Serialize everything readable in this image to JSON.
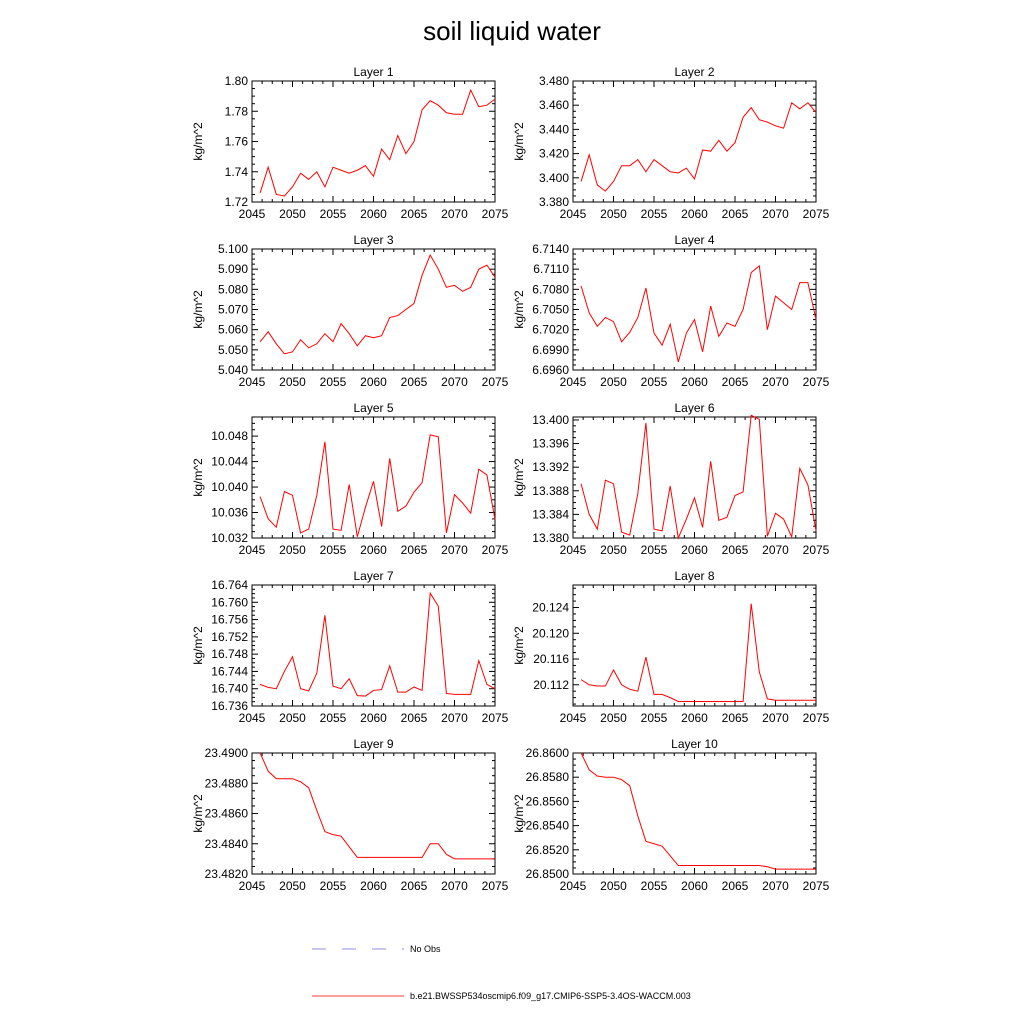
{
  "title": "soil liquid water",
  "colors": {
    "model": "#ff0000",
    "obs": "#6a6ad8",
    "axis": "#000000"
  },
  "legend": [
    {
      "label": "No Obs",
      "style": "dashed",
      "color": "#6a6ad8"
    },
    {
      "label": "b.e21.BWSSP534oscmip6.f09_g17.CMIP6-SSP5-3.4OS-WACCM.003",
      "style": "solid",
      "color": "#ff0000"
    }
  ],
  "chart_data": [
    {
      "type": "line",
      "title": "Layer 1",
      "ylabel": "kg/m^2",
      "xlim": [
        2045,
        2075
      ],
      "ylim": [
        1.72,
        1.8
      ],
      "xticks": [
        2045,
        2050,
        2055,
        2060,
        2065,
        2070,
        2075
      ],
      "xtick_labels": [
        "2045",
        "2050",
        "2055",
        "2060",
        "2065",
        "2070",
        "2075"
      ],
      "yticks": [
        1.72,
        1.74,
        1.76,
        1.78,
        1.8
      ],
      "ytick_labels": [
        "1.72",
        "1.74",
        "1.76",
        "1.78",
        "1.80"
      ],
      "x": [
        2046,
        2047,
        2048,
        2049,
        2050,
        2051,
        2052,
        2053,
        2054,
        2055,
        2056,
        2057,
        2058,
        2059,
        2060,
        2061,
        2062,
        2063,
        2064,
        2065,
        2066,
        2067,
        2068,
        2069,
        2070,
        2071,
        2072,
        2073,
        2074,
        2075
      ],
      "series": [
        {
          "values": [
            1.726,
            1.743,
            1.725,
            1.724,
            1.73,
            1.739,
            1.735,
            1.74,
            1.73,
            1.743,
            1.741,
            1.739,
            1.741,
            1.744,
            1.737,
            1.755,
            1.748,
            1.764,
            1.752,
            1.76,
            1.781,
            1.787,
            1.784,
            1.779,
            1.778,
            1.778,
            1.794,
            1.783,
            1.784,
            1.788
          ]
        }
      ]
    },
    {
      "type": "line",
      "title": "Layer 2",
      "ylabel": "kg/m^2",
      "xlim": [
        2045,
        2075
      ],
      "ylim": [
        3.38,
        3.48
      ],
      "xticks": [
        2045,
        2050,
        2055,
        2060,
        2065,
        2070,
        2075
      ],
      "xtick_labels": [
        "2045",
        "2050",
        "2055",
        "2060",
        "2065",
        "2070",
        "2075"
      ],
      "yticks": [
        3.38,
        3.4,
        3.42,
        3.44,
        3.46,
        3.48
      ],
      "ytick_labels": [
        "3.380",
        "3.400",
        "3.420",
        "3.440",
        "3.460",
        "3.480"
      ],
      "x": [
        2046,
        2047,
        2048,
        2049,
        2050,
        2051,
        2052,
        2053,
        2054,
        2055,
        2056,
        2057,
        2058,
        2059,
        2060,
        2061,
        2062,
        2063,
        2064,
        2065,
        2066,
        2067,
        2068,
        2069,
        2070,
        2071,
        2072,
        2073,
        2074,
        2075
      ],
      "series": [
        {
          "values": [
            3.397,
            3.419,
            3.394,
            3.389,
            3.397,
            3.41,
            3.41,
            3.415,
            3.405,
            3.415,
            3.41,
            3.405,
            3.404,
            3.408,
            3.399,
            3.423,
            3.422,
            3.431,
            3.422,
            3.429,
            3.45,
            3.458,
            3.448,
            3.446,
            3.443,
            3.441,
            3.462,
            3.457,
            3.462,
            3.454
          ]
        }
      ]
    },
    {
      "type": "line",
      "title": "Layer 3",
      "ylabel": "kg/m^2",
      "xlim": [
        2045,
        2075
      ],
      "ylim": [
        5.04,
        5.1
      ],
      "xticks": [
        2045,
        2050,
        2055,
        2060,
        2065,
        2070,
        2075
      ],
      "xtick_labels": [
        "2045",
        "2050",
        "2055",
        "2060",
        "2065",
        "2070",
        "2075"
      ],
      "yticks": [
        5.04,
        5.05,
        5.06,
        5.07,
        5.08,
        5.09,
        5.1
      ],
      "ytick_labels": [
        "5.040",
        "5.050",
        "5.060",
        "5.070",
        "5.080",
        "5.090",
        "5.100"
      ],
      "x": [
        2046,
        2047,
        2048,
        2049,
        2050,
        2051,
        2052,
        2053,
        2054,
        2055,
        2056,
        2057,
        2058,
        2059,
        2060,
        2061,
        2062,
        2063,
        2064,
        2065,
        2066,
        2067,
        2068,
        2069,
        2070,
        2071,
        2072,
        2073,
        2074,
        2075
      ],
      "series": [
        {
          "values": [
            5.054,
            5.059,
            5.053,
            5.048,
            5.049,
            5.055,
            5.051,
            5.053,
            5.058,
            5.054,
            5.063,
            5.058,
            5.052,
            5.057,
            5.056,
            5.057,
            5.066,
            5.067,
            5.07,
            5.073,
            5.087,
            5.097,
            5.09,
            5.081,
            5.082,
            5.079,
            5.081,
            5.09,
            5.092,
            5.086
          ]
        }
      ]
    },
    {
      "type": "line",
      "title": "Layer 4",
      "ylabel": "kg/m^2",
      "xlim": [
        2045,
        2075
      ],
      "ylim": [
        6.696,
        6.714
      ],
      "xticks": [
        2045,
        2050,
        2055,
        2060,
        2065,
        2070,
        2075
      ],
      "xtick_labels": [
        "2045",
        "2050",
        "2055",
        "2060",
        "2065",
        "2070",
        "2075"
      ],
      "yticks": [
        6.696,
        6.699,
        6.702,
        6.705,
        6.708,
        6.711,
        6.714
      ],
      "ytick_labels": [
        "6.6960",
        "6.6990",
        "6.7020",
        "6.7050",
        "6.7080",
        "6.7110",
        "6.7140"
      ],
      "x": [
        2046,
        2047,
        2048,
        2049,
        2050,
        2051,
        2052,
        2053,
        2054,
        2055,
        2056,
        2057,
        2058,
        2059,
        2060,
        2061,
        2062,
        2063,
        2064,
        2065,
        2066,
        2067,
        2068,
        2069,
        2070,
        2071,
        2072,
        2073,
        2074,
        2075
      ],
      "series": [
        {
          "values": [
            6.7085,
            6.7045,
            6.7025,
            6.7038,
            6.7032,
            6.7002,
            6.7016,
            6.7038,
            6.7082,
            6.7015,
            6.6997,
            6.7028,
            6.6972,
            6.7015,
            6.7035,
            6.6987,
            6.7055,
            6.701,
            6.703,
            6.7025,
            6.705,
            6.7105,
            6.7115,
            6.702,
            6.707,
            6.706,
            6.705,
            6.709,
            6.709,
            6.7035
          ]
        }
      ]
    },
    {
      "type": "line",
      "title": "Layer 5",
      "ylabel": "kg/m^2",
      "xlim": [
        2045,
        2075
      ],
      "ylim": [
        10.032,
        10.051
      ],
      "xticks": [
        2045,
        2050,
        2055,
        2060,
        2065,
        2070,
        2075
      ],
      "xtick_labels": [
        "2045",
        "2050",
        "2055",
        "2060",
        "2065",
        "2070",
        "2075"
      ],
      "yticks": [
        10.032,
        10.036,
        10.04,
        10.044,
        10.048
      ],
      "ytick_labels": [
        "10.032",
        "10.036",
        "10.040",
        "10.044",
        "10.048"
      ],
      "x": [
        2046,
        2047,
        2048,
        2049,
        2050,
        2051,
        2052,
        2053,
        2054,
        2055,
        2056,
        2057,
        2058,
        2059,
        2060,
        2061,
        2062,
        2063,
        2064,
        2065,
        2066,
        2067,
        2068,
        2069,
        2070,
        2071,
        2072,
        2073,
        2074,
        2075
      ],
      "series": [
        {
          "values": [
            10.0385,
            10.035,
            10.0337,
            10.0393,
            10.0387,
            10.0328,
            10.0334,
            10.0387,
            10.0471,
            10.0334,
            10.0332,
            10.0404,
            10.0322,
            10.0368,
            10.0409,
            10.0338,
            10.0445,
            10.0362,
            10.037,
            10.0392,
            10.0407,
            10.0482,
            10.0479,
            10.0328,
            10.0388,
            10.0375,
            10.0359,
            10.0428,
            10.0419,
            10.0349
          ]
        }
      ]
    },
    {
      "type": "line",
      "title": "Layer 6",
      "ylabel": "kg/m^2",
      "xlim": [
        2045,
        2075
      ],
      "ylim": [
        13.38,
        13.4005
      ],
      "xticks": [
        2045,
        2050,
        2055,
        2060,
        2065,
        2070,
        2075
      ],
      "xtick_labels": [
        "2045",
        "2050",
        "2055",
        "2060",
        "2065",
        "2070",
        "2075"
      ],
      "yticks": [
        13.38,
        13.384,
        13.388,
        13.392,
        13.396,
        13.4
      ],
      "ytick_labels": [
        "13.380",
        "13.384",
        "13.388",
        "13.392",
        "13.396",
        "13.400"
      ],
      "x": [
        2046,
        2047,
        2048,
        2049,
        2050,
        2051,
        2052,
        2053,
        2054,
        2055,
        2056,
        2057,
        2058,
        2059,
        2060,
        2061,
        2062,
        2063,
        2064,
        2065,
        2066,
        2067,
        2068,
        2069,
        2070,
        2071,
        2072,
        2073,
        2074,
        2075
      ],
      "series": [
        {
          "values": [
            13.3892,
            13.384,
            13.3815,
            13.3898,
            13.3892,
            13.381,
            13.3805,
            13.3875,
            13.3995,
            13.3815,
            13.3812,
            13.3888,
            13.38,
            13.3832,
            13.3868,
            13.3818,
            13.393,
            13.383,
            13.3835,
            13.3872,
            13.3878,
            13.4008,
            13.4001,
            13.3803,
            13.3842,
            13.3832,
            13.3802,
            13.3918,
            13.389,
            13.3812
          ]
        }
      ]
    },
    {
      "type": "line",
      "title": "Layer 7",
      "ylabel": "kg/m^2",
      "xlim": [
        2045,
        2075
      ],
      "ylim": [
        16.736,
        16.764
      ],
      "xticks": [
        2045,
        2050,
        2055,
        2060,
        2065,
        2070,
        2075
      ],
      "xtick_labels": [
        "2045",
        "2050",
        "2055",
        "2060",
        "2065",
        "2070",
        "2075"
      ],
      "yticks": [
        16.736,
        16.74,
        16.744,
        16.748,
        16.752,
        16.756,
        16.76,
        16.764
      ],
      "ytick_labels": [
        "16.736",
        "16.740",
        "16.744",
        "16.748",
        "16.752",
        "16.756",
        "16.760",
        "16.764"
      ],
      "x": [
        2046,
        2047,
        2048,
        2049,
        2050,
        2051,
        2052,
        2053,
        2054,
        2055,
        2056,
        2057,
        2058,
        2059,
        2060,
        2061,
        2062,
        2063,
        2064,
        2065,
        2066,
        2067,
        2068,
        2069,
        2070,
        2071,
        2072,
        2073,
        2074,
        2075
      ],
      "series": [
        {
          "values": [
            16.741,
            16.7403,
            16.74,
            16.744,
            16.7474,
            16.74,
            16.7395,
            16.7436,
            16.757,
            16.7406,
            16.74,
            16.7423,
            16.7384,
            16.7383,
            16.7396,
            16.7398,
            16.7453,
            16.7392,
            16.7392,
            16.7404,
            16.7396,
            16.7621,
            16.7591,
            16.7389,
            16.7387,
            16.7387,
            16.7387,
            16.7465,
            16.741,
            16.74
          ]
        }
      ]
    },
    {
      "type": "line",
      "title": "Layer 8",
      "ylabel": "kg/m^2",
      "xlim": [
        2045,
        2075
      ],
      "ylim": [
        20.1087,
        20.1275
      ],
      "xticks": [
        2045,
        2050,
        2055,
        2060,
        2065,
        2070,
        2075
      ],
      "xtick_labels": [
        "2045",
        "2050",
        "2055",
        "2060",
        "2065",
        "2070",
        "2075"
      ],
      "yticks": [
        20.112,
        20.116,
        20.12,
        20.124
      ],
      "ytick_labels": [
        "20.112",
        "20.116",
        "20.120",
        "20.124"
      ],
      "x": [
        2046,
        2047,
        2048,
        2049,
        2050,
        2051,
        2052,
        2053,
        2054,
        2055,
        2056,
        2057,
        2058,
        2059,
        2060,
        2061,
        2062,
        2063,
        2064,
        2065,
        2066,
        2067,
        2068,
        2069,
        2070,
        2071,
        2072,
        2073,
        2074,
        2075
      ],
      "series": [
        {
          "values": [
            20.1128,
            20.112,
            20.1118,
            20.1118,
            20.1143,
            20.112,
            20.1113,
            20.111,
            20.1163,
            20.1105,
            20.1105,
            20.11,
            20.1094,
            20.1094,
            20.1094,
            20.1094,
            20.1094,
            20.1094,
            20.1094,
            20.1094,
            20.1094,
            20.1246,
            20.114,
            20.1098,
            20.1096,
            20.1096,
            20.1096,
            20.1096,
            20.1096,
            20.1096
          ]
        }
      ]
    },
    {
      "type": "line",
      "title": "Layer 9",
      "ylabel": "kg/m^2",
      "xlim": [
        2045,
        2075
      ],
      "ylim": [
        23.482,
        23.49
      ],
      "xticks": [
        2045,
        2050,
        2055,
        2060,
        2065,
        2070,
        2075
      ],
      "xtick_labels": [
        "2045",
        "2050",
        "2055",
        "2060",
        "2065",
        "2070",
        "2075"
      ],
      "yticks": [
        23.482,
        23.484,
        23.486,
        23.488,
        23.49
      ],
      "ytick_labels": [
        "23.4820",
        "23.4840",
        "23.4860",
        "23.4880",
        "23.4900"
      ],
      "x": [
        2046,
        2047,
        2048,
        2049,
        2050,
        2051,
        2052,
        2053,
        2054,
        2055,
        2056,
        2057,
        2058,
        2059,
        2060,
        2061,
        2062,
        2063,
        2064,
        2065,
        2066,
        2067,
        2068,
        2069,
        2070,
        2071,
        2072,
        2073,
        2074,
        2075
      ],
      "series": [
        {
          "values": [
            23.49,
            23.4888,
            23.4883,
            23.4883,
            23.4883,
            23.4881,
            23.4877,
            23.4862,
            23.4848,
            23.4846,
            23.4845,
            23.4838,
            23.4831,
            23.4831,
            23.4831,
            23.4831,
            23.4831,
            23.4831,
            23.4831,
            23.4831,
            23.4831,
            23.484,
            23.484,
            23.4833,
            23.483,
            23.483,
            23.483,
            23.483,
            23.483,
            23.483
          ]
        }
      ]
    },
    {
      "type": "line",
      "title": "Layer 10",
      "ylabel": "kg/m^2",
      "xlim": [
        2045,
        2075
      ],
      "ylim": [
        26.85,
        26.86
      ],
      "xticks": [
        2045,
        2050,
        2055,
        2060,
        2065,
        2070,
        2075
      ],
      "xtick_labels": [
        "2045",
        "2050",
        "2055",
        "2060",
        "2065",
        "2070",
        "2075"
      ],
      "yticks": [
        26.85,
        26.852,
        26.854,
        26.856,
        26.858,
        26.86
      ],
      "ytick_labels": [
        "26.8500",
        "26.8520",
        "26.8540",
        "26.8560",
        "26.8580",
        "26.8600"
      ],
      "x": [
        2046,
        2047,
        2048,
        2049,
        2050,
        2051,
        2052,
        2053,
        2054,
        2055,
        2056,
        2057,
        2058,
        2059,
        2060,
        2061,
        2062,
        2063,
        2064,
        2065,
        2066,
        2067,
        2068,
        2069,
        2070,
        2071,
        2072,
        2073,
        2074,
        2075
      ],
      "series": [
        {
          "values": [
            26.86,
            26.8586,
            26.8581,
            26.858,
            26.858,
            26.8578,
            26.8573,
            26.8548,
            26.8527,
            26.8525,
            26.8523,
            26.8515,
            26.8507,
            26.8507,
            26.8507,
            26.8507,
            26.8507,
            26.8507,
            26.8507,
            26.8507,
            26.8507,
            26.8507,
            26.8507,
            26.8506,
            26.8504,
            26.8504,
            26.8504,
            26.8504,
            26.8504,
            26.8504
          ]
        }
      ]
    }
  ]
}
